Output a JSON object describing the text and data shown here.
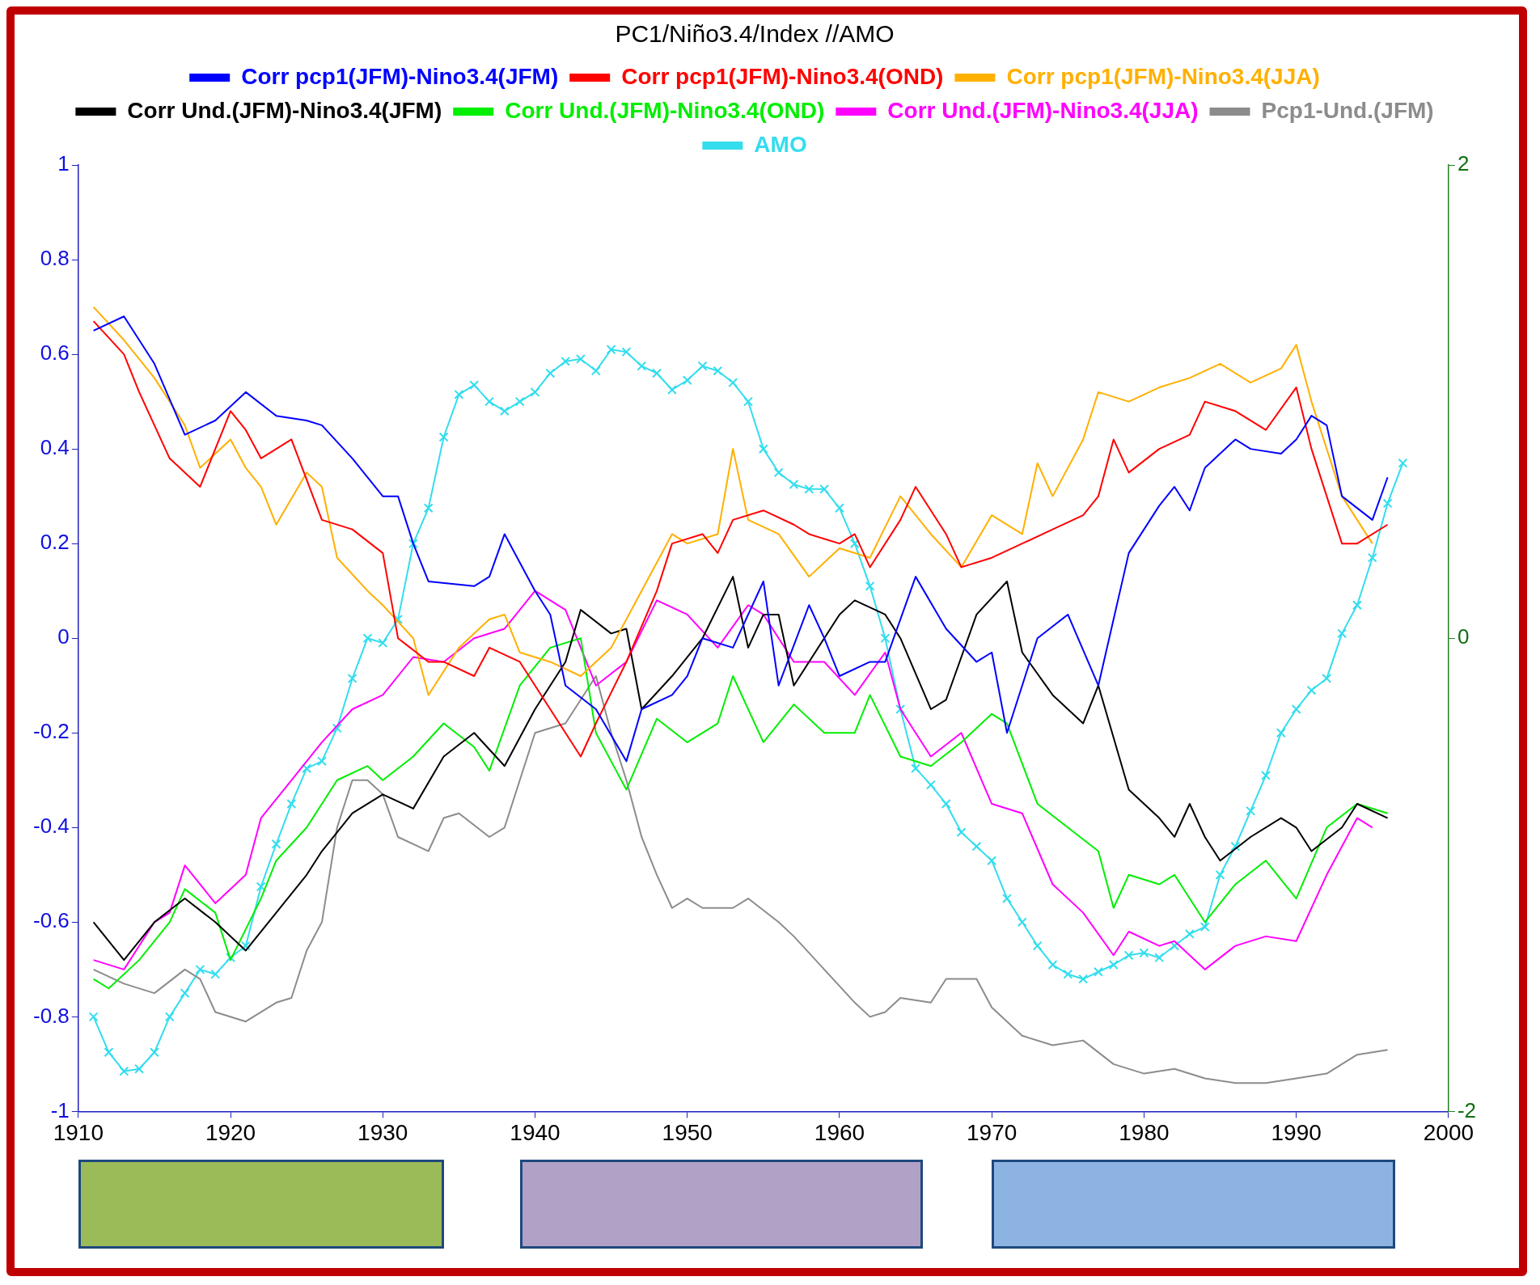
{
  "chart_data": {
    "type": "line",
    "title": "PC1/Niño3.4/Index //AMO",
    "xlim": [
      1910,
      2000
    ],
    "xticks": [
      1910,
      1920,
      1930,
      1940,
      1950,
      1960,
      1970,
      1980,
      1990,
      2000
    ],
    "ylim": [
      -1,
      1
    ],
    "yticks": [
      -1,
      -0.8,
      -0.6,
      -0.4,
      -0.2,
      0,
      0.2,
      0.4,
      0.6,
      0.8,
      1
    ],
    "y2lim": [
      -2,
      2
    ],
    "y2ticks": [
      -2,
      0,
      2
    ],
    "grid": false,
    "legend": "top",
    "marker": "none",
    "line_style": "solid",
    "series": [
      {
        "name": "Corr pcp1(JFM)-Nino3.4(JFM)",
        "color": "#0000ff",
        "x": [
          1911,
          1913,
          1915,
          1917,
          1919,
          1921,
          1923,
          1925,
          1926,
          1928,
          1930,
          1931,
          1932,
          1933,
          1936,
          1937,
          1938,
          1940,
          1941,
          1942,
          1944,
          1946,
          1947,
          1949,
          1950,
          1951,
          1953,
          1955,
          1956,
          1958,
          1959,
          1960,
          1962,
          1963,
          1965,
          1967,
          1969,
          1970,
          1971,
          1973,
          1975,
          1977,
          1979,
          1981,
          1982,
          1983,
          1984,
          1986,
          1987,
          1989,
          1990,
          1991,
          1992,
          1993,
          1995,
          1996
        ],
        "values": [
          0.65,
          0.68,
          0.58,
          0.43,
          0.46,
          0.52,
          0.47,
          0.46,
          0.45,
          0.38,
          0.3,
          0.3,
          0.2,
          0.12,
          0.11,
          0.13,
          0.22,
          0.1,
          0.05,
          -0.1,
          -0.15,
          -0.26,
          -0.15,
          -0.12,
          -0.08,
          0.0,
          -0.02,
          0.12,
          -0.1,
          0.07,
          0.0,
          -0.08,
          -0.05,
          -0.05,
          0.13,
          0.02,
          -0.05,
          -0.03,
          -0.2,
          0.0,
          0.05,
          -0.1,
          0.18,
          0.28,
          0.32,
          0.27,
          0.36,
          0.42,
          0.4,
          0.39,
          0.42,
          0.47,
          0.45,
          0.3,
          0.25,
          0.34
        ]
      },
      {
        "name": "Corr pcp1(JFM)-Nino3.4(OND)",
        "color": "#ff0000",
        "x": [
          1911,
          1913,
          1914,
          1916,
          1918,
          1920,
          1921,
          1922,
          1924,
          1926,
          1928,
          1930,
          1931,
          1933,
          1934,
          1936,
          1937,
          1939,
          1941,
          1943,
          1944,
          1946,
          1948,
          1949,
          1951,
          1952,
          1953,
          1955,
          1957,
          1958,
          1960,
          1961,
          1962,
          1964,
          1965,
          1967,
          1968,
          1970,
          1972,
          1974,
          1976,
          1977,
          1978,
          1979,
          1981,
          1983,
          1984,
          1986,
          1988,
          1990,
          1991,
          1992,
          1993,
          1994,
          1996
        ],
        "values": [
          0.67,
          0.6,
          0.52,
          0.38,
          0.32,
          0.48,
          0.44,
          0.38,
          0.42,
          0.25,
          0.23,
          0.18,
          0.0,
          -0.05,
          -0.05,
          -0.08,
          -0.02,
          -0.05,
          -0.15,
          -0.25,
          -0.18,
          -0.05,
          0.1,
          0.2,
          0.22,
          0.18,
          0.25,
          0.27,
          0.24,
          0.22,
          0.2,
          0.22,
          0.15,
          0.25,
          0.32,
          0.22,
          0.15,
          0.17,
          0.2,
          0.23,
          0.26,
          0.3,
          0.42,
          0.35,
          0.4,
          0.43,
          0.5,
          0.48,
          0.44,
          0.53,
          0.4,
          0.3,
          0.2,
          0.2,
          0.24
        ]
      },
      {
        "name": "Corr pcp1(JFM)-Nino3.4(JJA)",
        "color": "#ffb000",
        "x": [
          1911,
          1913,
          1915,
          1917,
          1918,
          1920,
          1921,
          1922,
          1923,
          1925,
          1926,
          1927,
          1929,
          1930,
          1932,
          1933,
          1935,
          1937,
          1938,
          1939,
          1941,
          1943,
          1945,
          1947,
          1949,
          1950,
          1952,
          1953,
          1954,
          1956,
          1958,
          1960,
          1962,
          1964,
          1966,
          1968,
          1970,
          1972,
          1973,
          1974,
          1976,
          1977,
          1979,
          1981,
          1983,
          1985,
          1987,
          1989,
          1990,
          1991,
          1993,
          1995
        ],
        "values": [
          0.7,
          0.63,
          0.55,
          0.45,
          0.36,
          0.42,
          0.36,
          0.32,
          0.24,
          0.35,
          0.32,
          0.17,
          0.1,
          0.07,
          0.0,
          -0.12,
          -0.02,
          0.04,
          0.05,
          -0.03,
          -0.05,
          -0.08,
          -0.02,
          0.1,
          0.22,
          0.2,
          0.22,
          0.4,
          0.25,
          0.22,
          0.13,
          0.19,
          0.17,
          0.3,
          0.22,
          0.15,
          0.26,
          0.22,
          0.37,
          0.3,
          0.42,
          0.52,
          0.5,
          0.53,
          0.55,
          0.58,
          0.54,
          0.57,
          0.62,
          0.5,
          0.3,
          0.2
        ]
      },
      {
        "name": "Corr Und.(JFM)-Nino3.4(JFM)",
        "color": "#000000",
        "x": [
          1911,
          1913,
          1915,
          1917,
          1919,
          1921,
          1923,
          1925,
          1926,
          1928,
          1930,
          1932,
          1934,
          1936,
          1938,
          1940,
          1941,
          1942,
          1943,
          1945,
          1946,
          1947,
          1949,
          1951,
          1953,
          1954,
          1955,
          1956,
          1957,
          1959,
          1960,
          1961,
          1963,
          1964,
          1966,
          1967,
          1969,
          1971,
          1972,
          1974,
          1976,
          1977,
          1979,
          1981,
          1982,
          1983,
          1984,
          1985,
          1987,
          1989,
          1990,
          1991,
          1993,
          1994,
          1996
        ],
        "values": [
          -0.6,
          -0.68,
          -0.6,
          -0.55,
          -0.6,
          -0.66,
          -0.58,
          -0.5,
          -0.45,
          -0.37,
          -0.33,
          -0.36,
          -0.25,
          -0.2,
          -0.27,
          -0.15,
          -0.1,
          -0.05,
          0.06,
          0.01,
          0.02,
          -0.15,
          -0.08,
          0.0,
          0.13,
          -0.02,
          0.05,
          0.05,
          -0.1,
          0.0,
          0.05,
          0.08,
          0.05,
          0.0,
          -0.15,
          -0.13,
          0.05,
          0.12,
          -0.03,
          -0.12,
          -0.18,
          -0.1,
          -0.32,
          -0.38,
          -0.42,
          -0.35,
          -0.42,
          -0.47,
          -0.42,
          -0.38,
          -0.4,
          -0.45,
          -0.4,
          -0.35,
          -0.38
        ]
      },
      {
        "name": "Corr Und.(JFM)-Nino3.4(OND)",
        "color": "#00ee00",
        "x": [
          1911,
          1912,
          1914,
          1916,
          1917,
          1919,
          1920,
          1922,
          1923,
          1925,
          1927,
          1929,
          1930,
          1932,
          1934,
          1936,
          1937,
          1939,
          1941,
          1943,
          1944,
          1946,
          1948,
          1950,
          1952,
          1953,
          1955,
          1957,
          1959,
          1961,
          1962,
          1964,
          1966,
          1968,
          1970,
          1971,
          1973,
          1975,
          1977,
          1978,
          1979,
          1981,
          1982,
          1984,
          1986,
          1988,
          1990,
          1992,
          1994,
          1996
        ],
        "values": [
          -0.72,
          -0.74,
          -0.68,
          -0.6,
          -0.53,
          -0.58,
          -0.68,
          -0.55,
          -0.47,
          -0.4,
          -0.3,
          -0.27,
          -0.3,
          -0.25,
          -0.18,
          -0.23,
          -0.28,
          -0.1,
          -0.02,
          0.0,
          -0.2,
          -0.32,
          -0.17,
          -0.22,
          -0.18,
          -0.08,
          -0.22,
          -0.14,
          -0.2,
          -0.2,
          -0.12,
          -0.25,
          -0.27,
          -0.22,
          -0.16,
          -0.18,
          -0.35,
          -0.4,
          -0.45,
          -0.57,
          -0.5,
          -0.52,
          -0.5,
          -0.6,
          -0.52,
          -0.47,
          -0.55,
          -0.4,
          -0.35,
          -0.37
        ]
      },
      {
        "name": "Corr Und.(JFM)-Nino3.4(JJA)",
        "color": "#ff00ff",
        "x": [
          1911,
          1913,
          1915,
          1916,
          1917,
          1919,
          1921,
          1922,
          1924,
          1926,
          1928,
          1930,
          1932,
          1934,
          1936,
          1938,
          1940,
          1942,
          1944,
          1946,
          1948,
          1950,
          1952,
          1954,
          1955,
          1957,
          1959,
          1961,
          1963,
          1964,
          1966,
          1968,
          1970,
          1972,
          1974,
          1976,
          1978,
          1979,
          1981,
          1982,
          1984,
          1986,
          1988,
          1990,
          1992,
          1994,
          1995
        ],
        "values": [
          -0.68,
          -0.7,
          -0.6,
          -0.58,
          -0.48,
          -0.56,
          -0.5,
          -0.38,
          -0.3,
          -0.22,
          -0.15,
          -0.12,
          -0.04,
          -0.05,
          0.0,
          0.02,
          0.1,
          0.06,
          -0.1,
          -0.05,
          0.08,
          0.05,
          -0.02,
          0.07,
          0.05,
          -0.05,
          -0.05,
          -0.12,
          -0.03,
          -0.15,
          -0.25,
          -0.2,
          -0.35,
          -0.37,
          -0.52,
          -0.58,
          -0.67,
          -0.62,
          -0.65,
          -0.64,
          -0.7,
          -0.65,
          -0.63,
          -0.64,
          -0.5,
          -0.38,
          -0.4
        ]
      },
      {
        "name": "Pcp1-Und.(JFM)",
        "color": "#8c8c8c",
        "x": [
          1911,
          1913,
          1915,
          1917,
          1918,
          1919,
          1921,
          1923,
          1924,
          1925,
          1926,
          1927,
          1928,
          1929,
          1930,
          1931,
          1933,
          1934,
          1935,
          1937,
          1938,
          1940,
          1942,
          1944,
          1945,
          1946,
          1947,
          1948,
          1949,
          1950,
          1951,
          1953,
          1954,
          1956,
          1957,
          1959,
          1961,
          1962,
          1963,
          1964,
          1966,
          1967,
          1969,
          1970,
          1972,
          1974,
          1976,
          1978,
          1980,
          1982,
          1984,
          1986,
          1988,
          1990,
          1992,
          1994,
          1996
        ],
        "values": [
          -0.7,
          -0.73,
          -0.75,
          -0.7,
          -0.72,
          -0.79,
          -0.81,
          -0.77,
          -0.76,
          -0.66,
          -0.6,
          -0.4,
          -0.3,
          -0.3,
          -0.33,
          -0.42,
          -0.45,
          -0.38,
          -0.37,
          -0.42,
          -0.4,
          -0.2,
          -0.18,
          -0.08,
          -0.2,
          -0.3,
          -0.42,
          -0.5,
          -0.57,
          -0.55,
          -0.57,
          -0.57,
          -0.55,
          -0.6,
          -0.63,
          -0.7,
          -0.77,
          -0.8,
          -0.79,
          -0.76,
          -0.77,
          -0.72,
          -0.72,
          -0.78,
          -0.84,
          -0.86,
          -0.85,
          -0.9,
          -0.92,
          -0.91,
          -0.93,
          -0.94,
          -0.94,
          -0.93,
          -0.92,
          -0.88,
          -0.87
        ]
      },
      {
        "name": "AMO",
        "color": "#33ddee",
        "axis": "y2",
        "marker": "cross",
        "x": [
          1911,
          1912,
          1913,
          1914,
          1915,
          1916,
          1917,
          1918,
          1919,
          1920,
          1921,
          1922,
          1923,
          1924,
          1925,
          1926,
          1927,
          1928,
          1929,
          1930,
          1931,
          1932,
          1933,
          1934,
          1935,
          1936,
          1937,
          1938,
          1939,
          1940,
          1941,
          1942,
          1943,
          1944,
          1945,
          1946,
          1947,
          1948,
          1949,
          1950,
          1951,
          1952,
          1953,
          1954,
          1955,
          1956,
          1957,
          1958,
          1959,
          1960,
          1961,
          1962,
          1963,
          1964,
          1965,
          1966,
          1967,
          1968,
          1969,
          1970,
          1971,
          1972,
          1973,
          1974,
          1975,
          1976,
          1977,
          1978,
          1979,
          1980,
          1981,
          1982,
          1983,
          1984,
          1985,
          1986,
          1987,
          1988,
          1989,
          1990,
          1991,
          1992,
          1993,
          1994,
          1995,
          1996,
          1997
        ],
        "values": [
          -1.6,
          -1.75,
          -1.83,
          -1.82,
          -1.75,
          -1.6,
          -1.5,
          -1.4,
          -1.42,
          -1.35,
          -1.3,
          -1.05,
          -0.87,
          -0.7,
          -0.55,
          -0.52,
          -0.38,
          -0.17,
          0.0,
          -0.02,
          0.08,
          0.4,
          0.55,
          0.85,
          1.03,
          1.07,
          1.0,
          0.96,
          1.0,
          1.04,
          1.12,
          1.17,
          1.18,
          1.13,
          1.22,
          1.21,
          1.15,
          1.12,
          1.05,
          1.09,
          1.15,
          1.13,
          1.08,
          1.0,
          0.8,
          0.7,
          0.65,
          0.63,
          0.63,
          0.55,
          0.4,
          0.22,
          0.0,
          -0.3,
          -0.55,
          -0.62,
          -0.7,
          -0.82,
          -0.88,
          -0.94,
          -1.1,
          -1.2,
          -1.3,
          -1.38,
          -1.42,
          -1.44,
          -1.41,
          -1.38,
          -1.34,
          -1.33,
          -1.35,
          -1.3,
          -1.25,
          -1.22,
          -1.0,
          -0.88,
          -0.73,
          -0.58,
          -0.4,
          -0.3,
          -0.22,
          -0.17,
          0.02,
          0.14,
          0.34,
          0.57,
          0.74
        ]
      }
    ]
  }
}
